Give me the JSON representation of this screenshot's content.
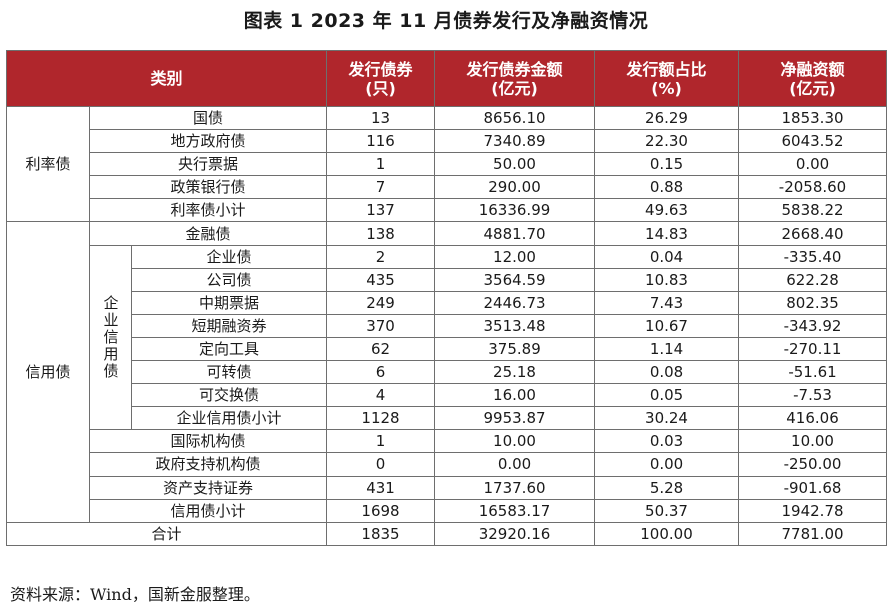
{
  "title": "图表 1  2023 年 11 月债券发行及净融资情况",
  "headers": {
    "category": "类别",
    "count": [
      "发行债券",
      "(只)"
    ],
    "amount": [
      "发行债券金额",
      "(亿元)"
    ],
    "share": [
      "发行额占比",
      "(%)"
    ],
    "net": [
      "净融资额",
      "(亿元)"
    ]
  },
  "groups": {
    "rate": "利率债",
    "credit": "信用债",
    "corporate": "企业信用债"
  },
  "rows": {
    "guozhai": {
      "name": "国债",
      "count": "13",
      "amount": "8656.10",
      "share": "26.29",
      "net": "1853.30"
    },
    "difang": {
      "name": "地方政府债",
      "count": "116",
      "amount": "7340.89",
      "share": "22.30",
      "net": "6043.52"
    },
    "yanghang": {
      "name": "央行票据",
      "count": "1",
      "amount": "50.00",
      "share": "0.15",
      "net": "0.00"
    },
    "zhengce": {
      "name": "政策银行债",
      "count": "7",
      "amount": "290.00",
      "share": "0.88",
      "net": "-2058.60"
    },
    "rate_sub": {
      "name": "利率债小计",
      "count": "137",
      "amount": "16336.99",
      "share": "49.63",
      "net": "5838.22"
    },
    "jinrong": {
      "name": "金融债",
      "count": "138",
      "amount": "4881.70",
      "share": "14.83",
      "net": "2668.40"
    },
    "qiye": {
      "name": "企业债",
      "count": "2",
      "amount": "12.00",
      "share": "0.04",
      "net": "-335.40"
    },
    "gongsi": {
      "name": "公司债",
      "count": "435",
      "amount": "3564.59",
      "share": "10.83",
      "net": "622.28"
    },
    "zhongqi": {
      "name": "中期票据",
      "count": "249",
      "amount": "2446.73",
      "share": "7.43",
      "net": "802.35"
    },
    "duanqi": {
      "name": "短期融资券",
      "count": "370",
      "amount": "3513.48",
      "share": "10.67",
      "net": "-343.92"
    },
    "dingxiang": {
      "name": "定向工具",
      "count": "62",
      "amount": "375.89",
      "share": "1.14",
      "net": "-270.11"
    },
    "kezhuan": {
      "name": "可转债",
      "count": "6",
      "amount": "25.18",
      "share": "0.08",
      "net": "-51.61"
    },
    "kejiaohuan": {
      "name": "可交换债",
      "count": "4",
      "amount": "16.00",
      "share": "0.05",
      "net": "-7.53"
    },
    "corp_sub": {
      "name": "企业信用债小计",
      "count": "1128",
      "amount": "9953.87",
      "share": "30.24",
      "net": "416.06"
    },
    "guoji": {
      "name": "国际机构债",
      "count": "1",
      "amount": "10.00",
      "share": "0.03",
      "net": "10.00"
    },
    "zhengfu": {
      "name": "政府支持机构债",
      "count": "0",
      "amount": "0.00",
      "share": "0.00",
      "net": "-250.00"
    },
    "zichan": {
      "name": "资产支持证券",
      "count": "431",
      "amount": "1737.60",
      "share": "5.28",
      "net": "-901.68"
    },
    "credit_sub": {
      "name": "信用债小计",
      "count": "1698",
      "amount": "16583.17",
      "share": "50.37",
      "net": "1942.78"
    },
    "total": {
      "name": "合计",
      "count": "1835",
      "amount": "32920.16",
      "share": "100.00",
      "net": "7781.00"
    }
  },
  "source_note": "资料来源：Wind，国新金服整理。",
  "colors": {
    "header_bg": "#b0262c",
    "header_text": "#ffffff",
    "border": "#6e6e6e"
  }
}
